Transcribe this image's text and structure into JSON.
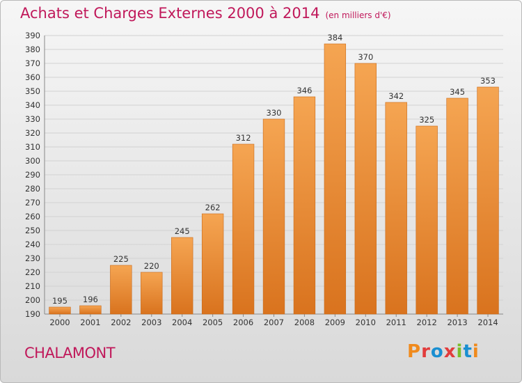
{
  "header": {
    "title": "Achats et Charges Externes 2000 à 2014",
    "unit": "(en milliers d'€)"
  },
  "footer": {
    "place": "CHALAMONT",
    "logo": "Proxiti"
  },
  "colors": {
    "title": "#c0185a",
    "bar_light": "#f5a552",
    "bar_dark": "#d9731e",
    "logo_letters": [
      "#f08a1c",
      "#e23c3c",
      "#1a8fd1",
      "#e23c3c",
      "#7cbd2a",
      "#1a8fd1",
      "#f08a1c"
    ]
  },
  "chart_data": {
    "type": "bar",
    "title": "Achats et Charges Externes 2000 à 2014",
    "subtitle": "(en milliers d'€)",
    "xlabel": "",
    "ylabel": "",
    "categories": [
      "2000",
      "2001",
      "2002",
      "2003",
      "2004",
      "2005",
      "2006",
      "2007",
      "2008",
      "2009",
      "2010",
      "2011",
      "2012",
      "2013",
      "2014"
    ],
    "values": [
      195,
      196,
      225,
      220,
      245,
      262,
      312,
      330,
      346,
      384,
      370,
      342,
      325,
      345,
      353
    ],
    "ylim": [
      190,
      390
    ],
    "yticks": [
      190,
      200,
      210,
      220,
      230,
      240,
      250,
      260,
      270,
      280,
      290,
      300,
      310,
      320,
      330,
      340,
      350,
      360,
      370,
      380,
      390
    ],
    "grid": true,
    "legend": "none"
  }
}
